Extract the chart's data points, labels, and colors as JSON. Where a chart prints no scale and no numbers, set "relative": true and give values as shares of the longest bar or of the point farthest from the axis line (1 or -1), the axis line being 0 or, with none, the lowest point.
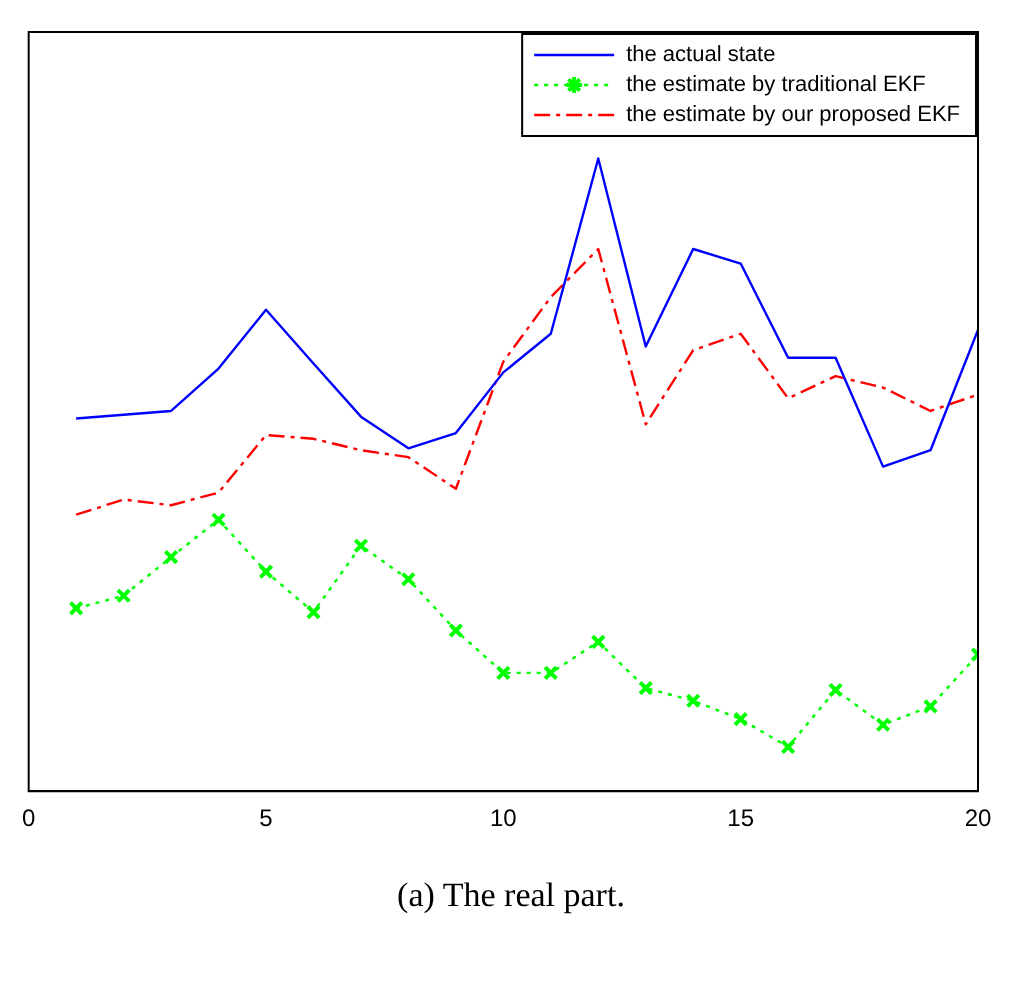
{
  "chart_data": {
    "type": "line",
    "relative": true,
    "x": [
      1,
      2,
      3,
      4,
      5,
      6,
      7,
      8,
      9,
      10,
      11,
      12,
      13,
      14,
      15,
      16,
      17,
      18,
      19,
      20
    ],
    "xlim": [
      0,
      20
    ],
    "xticks": [
      0,
      5,
      10,
      15,
      20
    ],
    "legend": "top right",
    "annotations": [
      "(a) The real part."
    ],
    "series": [
      {
        "name": "the actual state",
        "color": "#0000ff",
        "marker": "none",
        "line_style": "solid",
        "values": [
          0.589,
          0.595,
          0.601,
          0.668,
          0.761,
          0.676,
          0.592,
          0.542,
          0.566,
          0.662,
          0.723,
          1,
          0.703,
          0.857,
          0.834,
          0.685,
          0.685,
          0.513,
          0.539,
          0.729
        ]
      },
      {
        "name": "the estimate by traditional EKF",
        "color": "#00ff00",
        "marker": "cross",
        "line_style": "dotted",
        "values": [
          0.289,
          0.309,
          0.37,
          0.429,
          0.347,
          0.283,
          0.388,
          0.335,
          0.254,
          0.187,
          0.187,
          0.236,
          0.163,
          0.143,
          0.114,
          0.07,
          0.16,
          0.105,
          0.134,
          0.216
        ]
      },
      {
        "name": "the estimate by our proposed EKF",
        "color": "#ff0000",
        "marker": "none",
        "line_style": "dashed",
        "values": [
          0.437,
          0.461,
          0.452,
          0.472,
          0.563,
          0.557,
          0.539,
          0.528,
          0.478,
          0.679,
          0.781,
          0.857,
          0.58,
          0.697,
          0.723,
          0.621,
          0.656,
          0.638,
          0.601,
          0.627
        ]
      }
    ]
  }
}
